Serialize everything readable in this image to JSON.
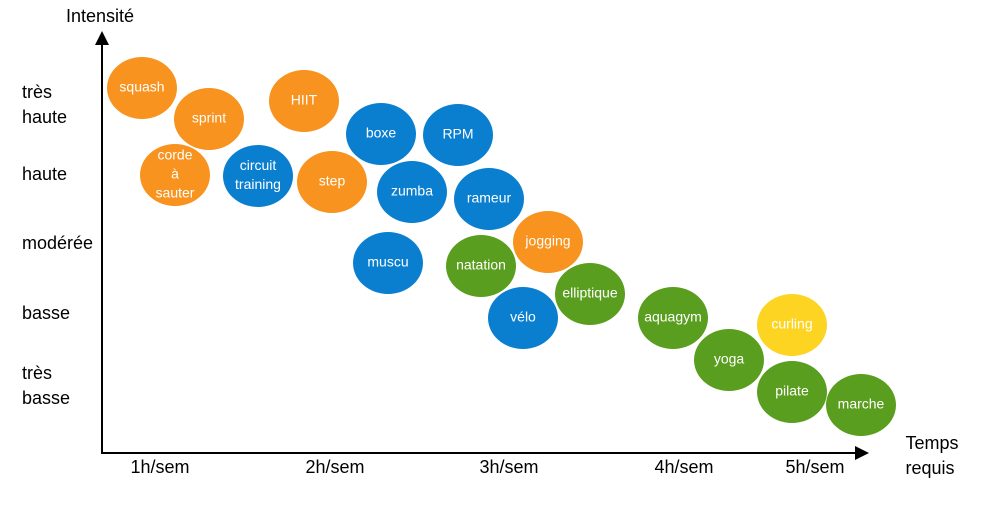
{
  "y_axis": {
    "title": "Intensité",
    "levels": [
      [
        "très",
        "haute"
      ],
      [
        "haute"
      ],
      [
        "modérée"
      ],
      [
        "basse"
      ],
      [
        "très",
        "basse"
      ]
    ]
  },
  "x_axis": {
    "title": [
      "Temps",
      "requis"
    ],
    "levels": [
      "1h/sem",
      "2h/sem",
      "3h/sem",
      "4h/sem",
      "5h/sem"
    ]
  },
  "nodes": [
    {
      "label": [
        "squash"
      ],
      "color": "#f7931e"
    },
    {
      "label": [
        "sprint"
      ],
      "color": "#f7931e"
    },
    {
      "label": [
        "corde",
        "à",
        "sauter"
      ],
      "color": "#f7931e"
    },
    {
      "label": [
        "HIIT"
      ],
      "color": "#f7931e"
    },
    {
      "label": [
        "circuit",
        "training"
      ],
      "color": "#0a7fd0"
    },
    {
      "label": [
        "step"
      ],
      "color": "#f7931e"
    },
    {
      "label": [
        "boxe"
      ],
      "color": "#0a7fd0"
    },
    {
      "label": [
        "RPM"
      ],
      "color": "#0a7fd0"
    },
    {
      "label": [
        "zumba"
      ],
      "color": "#0a7fd0"
    },
    {
      "label": [
        "rameur"
      ],
      "color": "#0a7fd0"
    },
    {
      "label": [
        "muscu"
      ],
      "color": "#0a7fd0"
    },
    {
      "label": [
        "natation"
      ],
      "color": "#5a9e20"
    },
    {
      "label": [
        "jogging"
      ],
      "color": "#f7931e"
    },
    {
      "label": [
        "vélo"
      ],
      "color": "#0a7fd0"
    },
    {
      "label": [
        "elliptique"
      ],
      "color": "#5a9e20"
    },
    {
      "label": [
        "aquagym"
      ],
      "color": "#5a9e20"
    },
    {
      "label": [
        "yoga"
      ],
      "color": "#5a9e20"
    },
    {
      "label": [
        "curling"
      ],
      "color": "#fdd422"
    },
    {
      "label": [
        "pilate"
      ],
      "color": "#5a9e20"
    },
    {
      "label": [
        "marche"
      ],
      "color": "#5a9e20"
    }
  ]
}
